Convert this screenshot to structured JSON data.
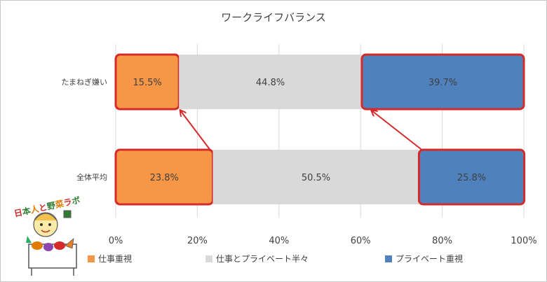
{
  "chart_data": {
    "type": "bar",
    "orientation": "horizontal",
    "stacked": "percent",
    "title": "ワークライフバランス",
    "categories": [
      "たまねぎ嫌い",
      "全体平均"
    ],
    "series": [
      {
        "name": "仕事重視",
        "values": [
          15.5,
          23.8
        ],
        "color": "#f79646"
      },
      {
        "name": "仕事とプライベート半々",
        "values": [
          44.8,
          50.5
        ],
        "color": "#d9d9d9"
      },
      {
        "name": "プライベート重視",
        "values": [
          39.7,
          25.8
        ],
        "color": "#4f81bd"
      }
    ],
    "value_labels": [
      [
        "15.5%",
        "44.8%",
        "39.7%"
      ],
      [
        "23.8%",
        "50.5%",
        "25.8%"
      ]
    ],
    "xticks": [
      "0%",
      "20%",
      "40%",
      "60%",
      "80%",
      "100%"
    ],
    "xlim": [
      0,
      100
    ],
    "grid": "vertical",
    "legend": "bottom",
    "highlight_color": "#d42a2a",
    "highlighted_segments": [
      "仕事重視",
      "プライベート重視"
    ],
    "arrows": "from 全体平均 segment edges up to たまねぎ嫌い segment edges"
  },
  "logo": {
    "text": "日本人と野菜ラボ",
    "colors": [
      "#d42a2a",
      "#2e7d32",
      "#e07b00"
    ]
  }
}
